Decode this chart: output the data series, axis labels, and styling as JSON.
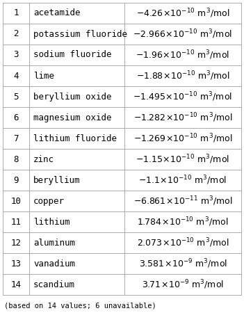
{
  "rows": [
    {
      "rank": "1",
      "name": "acetamide",
      "value_main": "-4.26",
      "value_exp": "-10"
    },
    {
      "rank": "2",
      "name": "potassium fluoride",
      "value_main": "-2.966",
      "value_exp": "-10"
    },
    {
      "rank": "3",
      "name": "sodium fluoride",
      "value_main": "-1.96",
      "value_exp": "-10"
    },
    {
      "rank": "4",
      "name": "lime",
      "value_main": "-1.88",
      "value_exp": "-10"
    },
    {
      "rank": "5",
      "name": "beryllium oxide",
      "value_main": "-1.495",
      "value_exp": "-10"
    },
    {
      "rank": "6",
      "name": "magnesium oxide",
      "value_main": "-1.282",
      "value_exp": "-10"
    },
    {
      "rank": "7",
      "name": "lithium fluoride",
      "value_main": "-1.269",
      "value_exp": "-10"
    },
    {
      "rank": "8",
      "name": "zinc",
      "value_main": "-1.15",
      "value_exp": "-10"
    },
    {
      "rank": "9",
      "name": "beryllium",
      "value_main": "-1.1",
      "value_exp": "-10"
    },
    {
      "rank": "10",
      "name": "copper",
      "value_main": "-6.861",
      "value_exp": "-11"
    },
    {
      "rank": "11",
      "name": "lithium",
      "value_main": "1.784",
      "value_exp": "-10"
    },
    {
      "rank": "12",
      "name": "aluminum",
      "value_main": "2.073",
      "value_exp": "-10"
    },
    {
      "rank": "13",
      "name": "vanadium",
      "value_main": "3.581",
      "value_exp": "-9"
    },
    {
      "rank": "14",
      "name": "scandium",
      "value_main": "3.71",
      "value_exp": "-9"
    }
  ],
  "footer": "(based on 14 values; 6 unavailable)",
  "bg_color": "#ffffff",
  "line_color": "#aaaaaa",
  "text_color": "#000000",
  "font_size": 9.0,
  "footer_font_size": 7.5
}
